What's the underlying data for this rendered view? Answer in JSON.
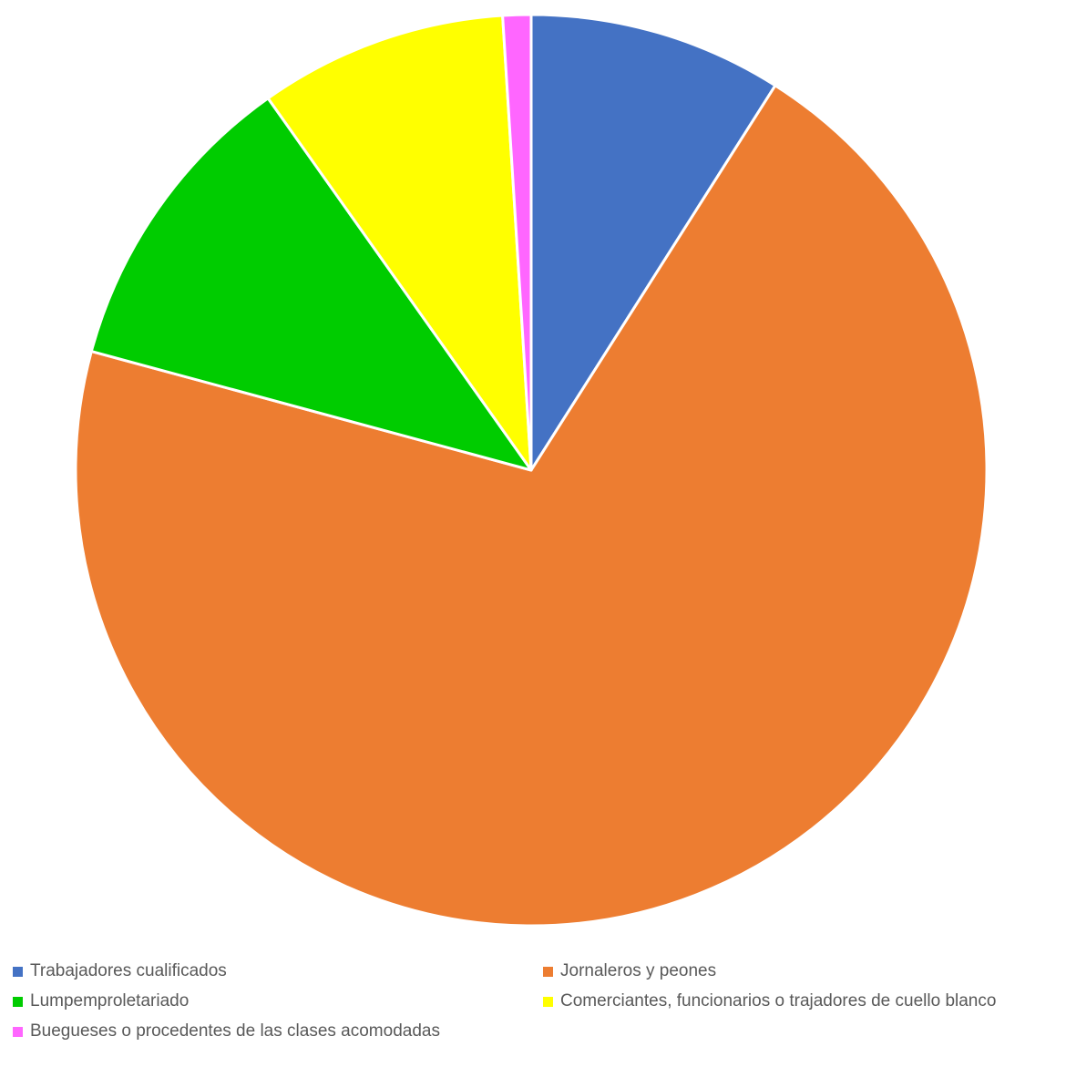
{
  "chart_data": {
    "type": "pie",
    "title": "",
    "legend_position": "bottom",
    "slices": [
      {
        "label": "Trabajadores cualificados",
        "value": 9.0,
        "color": "#4472C4"
      },
      {
        "label": "Jornaleros y peones",
        "value": 70.2,
        "color": "#ED7D31"
      },
      {
        "label": "Lumpemproletariado",
        "value": 11.0,
        "color": "#00CC00"
      },
      {
        "label": "Comerciantes, funcionarios o trajadores de cuello blanco",
        "value": 8.8,
        "color": "#FFFF00"
      },
      {
        "label": "Buegueses o procedentes de las clases acomodadas",
        "value": 1.0,
        "color": "#FF66FF"
      }
    ]
  },
  "legend": {
    "items": [
      {
        "label": "Trabajadores cualificados",
        "color": "#4472C4"
      },
      {
        "label": "Jornaleros y peones",
        "color": "#ED7D31"
      },
      {
        "label": "Lumpemproletariado",
        "color": "#00CC00"
      },
      {
        "label": "Comerciantes, funcionarios o trajadores de cuello blanco",
        "color": "#FFFF00"
      },
      {
        "label": "Buegueses o procedentes de las clases acomodadas",
        "color": "#FF66FF"
      }
    ]
  }
}
